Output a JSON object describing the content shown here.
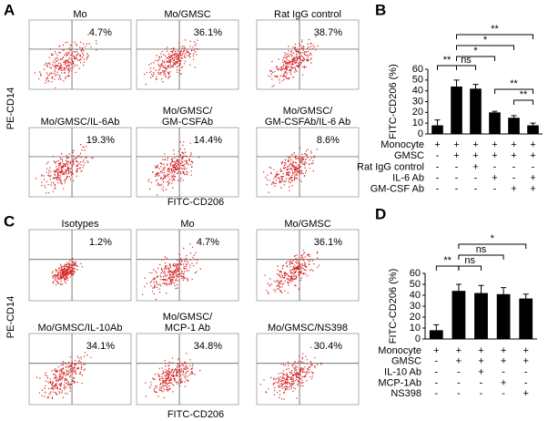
{
  "panels": [
    {
      "letter": "A",
      "y_label": "PE-CD14",
      "x_label": "FITC-CD206",
      "plots": [
        {
          "title": [
            "Mo"
          ],
          "percent": "4.7%"
        },
        {
          "title": [
            "Mo/GMSC"
          ],
          "percent": "36.1%"
        },
        {
          "title": [
            "Rat IgG control"
          ],
          "percent": "38.7%"
        },
        {
          "title": [
            "Mo/GMSC/IL-6Ab"
          ],
          "percent": "19.3%"
        },
        {
          "title": [
            "Mo/GMSC/",
            "GM-CSFAb"
          ],
          "percent": "14.4%"
        },
        {
          "title": [
            "Mo/GMSC/",
            "GM-CSFAb/IL-6 Ab"
          ],
          "percent": "8.6%"
        }
      ]
    },
    {
      "letter": "C",
      "y_label": "PE-CD14",
      "x_label": "FITC-CD206",
      "plots": [
        {
          "title": [
            "Isotypes"
          ],
          "percent": "1.2%"
        },
        {
          "title": [
            "Mo"
          ],
          "percent": "4.7%"
        },
        {
          "title": [
            "Mo/GMSC"
          ],
          "percent": "36.1%"
        },
        {
          "title": [
            "Mo/GMSC/IL-10Ab"
          ],
          "percent": "34.1%"
        },
        {
          "title": [
            "Mo/GMSC/",
            "MCP-1 Ab"
          ],
          "percent": "34.8%"
        },
        {
          "title": [
            "Mo/GMSC/NS398"
          ],
          "percent": "30.4%"
        }
      ]
    }
  ],
  "chart_data": [
    {
      "letter": "B",
      "type": "bar",
      "y_label": "FITC-CD206 (%)",
      "color": "#000000",
      "values": [
        8,
        44,
        42,
        20,
        15,
        8
      ],
      "errors": [
        5,
        6,
        4,
        1,
        2,
        2
      ],
      "ylim": [
        0,
        60
      ],
      "yticks": [
        0,
        10,
        20,
        30,
        40,
        50,
        60
      ],
      "conditions": [
        {
          "name": "Monocyte",
          "signs": [
            "+",
            "+",
            "+",
            "+",
            "+",
            "+"
          ]
        },
        {
          "name": "GMSC",
          "signs": [
            "-",
            "+",
            "+",
            "+",
            "+",
            "+"
          ]
        },
        {
          "name": "Rat IgG control",
          "signs": [
            "-",
            "-",
            "+",
            "-",
            "-",
            "-"
          ]
        },
        {
          "name": "IL-6 Ab",
          "signs": [
            "-",
            "-",
            "-",
            "+",
            "-",
            "+"
          ]
        },
        {
          "name": "GM-CSF Ab",
          "signs": [
            "-",
            "-",
            "-",
            "-",
            "+",
            "+"
          ]
        }
      ],
      "annotations": [
        "**",
        "*",
        "*",
        "ns",
        "**",
        "**",
        "**"
      ]
    },
    {
      "letter": "D",
      "type": "bar",
      "y_label": "FITC-CD206 (%)",
      "color": "#000000",
      "values": [
        8,
        44,
        42,
        41,
        37
      ],
      "errors": [
        5,
        6,
        7,
        6,
        4
      ],
      "ylim": [
        0,
        60
      ],
      "yticks": [
        0,
        10,
        20,
        30,
        40,
        50,
        60
      ],
      "conditions": [
        {
          "name": "Monocyte",
          "signs": [
            "+",
            "+",
            "+",
            "+",
            "+"
          ]
        },
        {
          "name": "GMSC",
          "signs": [
            "-",
            "+",
            "+",
            "+",
            "+"
          ]
        },
        {
          "name": "IL-10 Ab",
          "signs": [
            "-",
            "-",
            "+",
            "-",
            "-"
          ]
        },
        {
          "name": "MCP-1Ab",
          "signs": [
            "-",
            "-",
            "-",
            "+",
            "-"
          ]
        },
        {
          "name": "NS398",
          "signs": [
            "-",
            "-",
            "-",
            "-",
            "+"
          ]
        }
      ],
      "annotations": [
        "*",
        "ns",
        "ns",
        "**"
      ]
    }
  ]
}
